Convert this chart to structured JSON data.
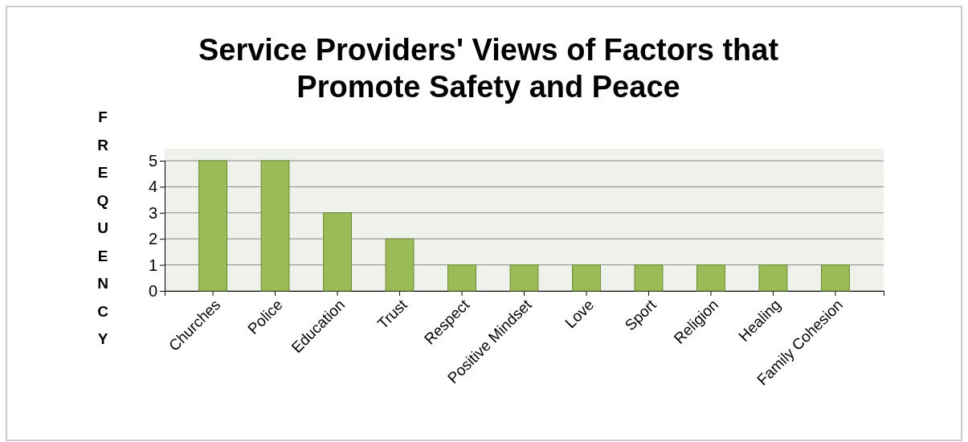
{
  "chart_data": {
    "type": "bar",
    "title": "Service Providers' Views of Factors that Promote Safety and Peace",
    "ylabel": "FREQUENCY",
    "categories": [
      "Churches",
      "Police",
      "Education",
      "Trust",
      "Respect",
      "Positive Mindset",
      "Love",
      "Sport",
      "Religion",
      "Healing",
      "Family Cohesion"
    ],
    "values": [
      5,
      5,
      3,
      2,
      1,
      1,
      1,
      1,
      1,
      1,
      1
    ],
    "color": "#9bbb59",
    "ylim": [
      0,
      5
    ],
    "yticks": [
      0,
      1,
      2,
      3,
      4,
      5
    ],
    "grid": "y"
  }
}
